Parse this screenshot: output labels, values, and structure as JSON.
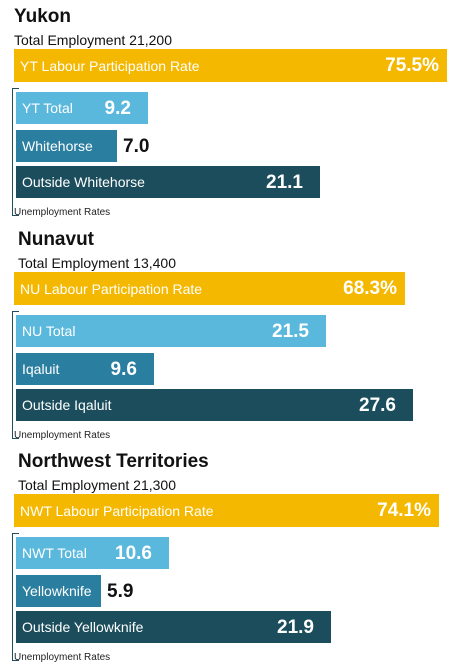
{
  "chart_data": {
    "type": "bar",
    "regions": [
      {
        "name": "Yukon",
        "employment_label": "Total Employment 21,200",
        "participation": {
          "label": "YT Labour Participation Rate",
          "value": 75.5,
          "display": "75.5%"
        },
        "unemployment": [
          {
            "label": "YT Total",
            "value": 9.2,
            "display": "9.2",
            "tier": "total"
          },
          {
            "label": "Whitehorse",
            "value": 7.0,
            "display": "7.0",
            "tier": "city"
          },
          {
            "label": "Outside Whitehorse",
            "value": 21.1,
            "display": "21.1",
            "tier": "outside"
          }
        ],
        "unemployment_caption": "Unemployment Rates"
      },
      {
        "name": "Nunavut",
        "employment_label": "Total Employment 13,400",
        "participation": {
          "label": "NU Labour Participation Rate",
          "value": 68.3,
          "display": "68.3%"
        },
        "unemployment": [
          {
            "label": "NU Total",
            "value": 21.5,
            "display": "21.5",
            "tier": "total"
          },
          {
            "label": "Iqaluit",
            "value": 9.6,
            "display": "9.6",
            "tier": "city"
          },
          {
            "label": "Outside Iqaluit",
            "value": 27.6,
            "display": "27.6",
            "tier": "outside"
          }
        ],
        "unemployment_caption": "Unemployment Rates"
      },
      {
        "name": "Northwest Territories",
        "employment_label": "Total Employment 21,300",
        "participation": {
          "label": "NWT Labour Participation Rate",
          "value": 74.1,
          "display": "74.1%"
        },
        "unemployment": [
          {
            "label": "NWT Total",
            "value": 10.6,
            "display": "10.6",
            "tier": "total"
          },
          {
            "label": "Yellowknife",
            "value": 5.9,
            "display": "5.9",
            "tier": "city"
          },
          {
            "label": "Outside Yellowknife",
            "value": 21.9,
            "display": "21.9",
            "tier": "outside"
          }
        ],
        "unemployment_caption": "Unemployment Rates"
      }
    ]
  },
  "colors": {
    "participation": "#f5b800",
    "total": "#5ab8dc",
    "city": "#2a7e9f",
    "outside": "#1b4d5c"
  }
}
